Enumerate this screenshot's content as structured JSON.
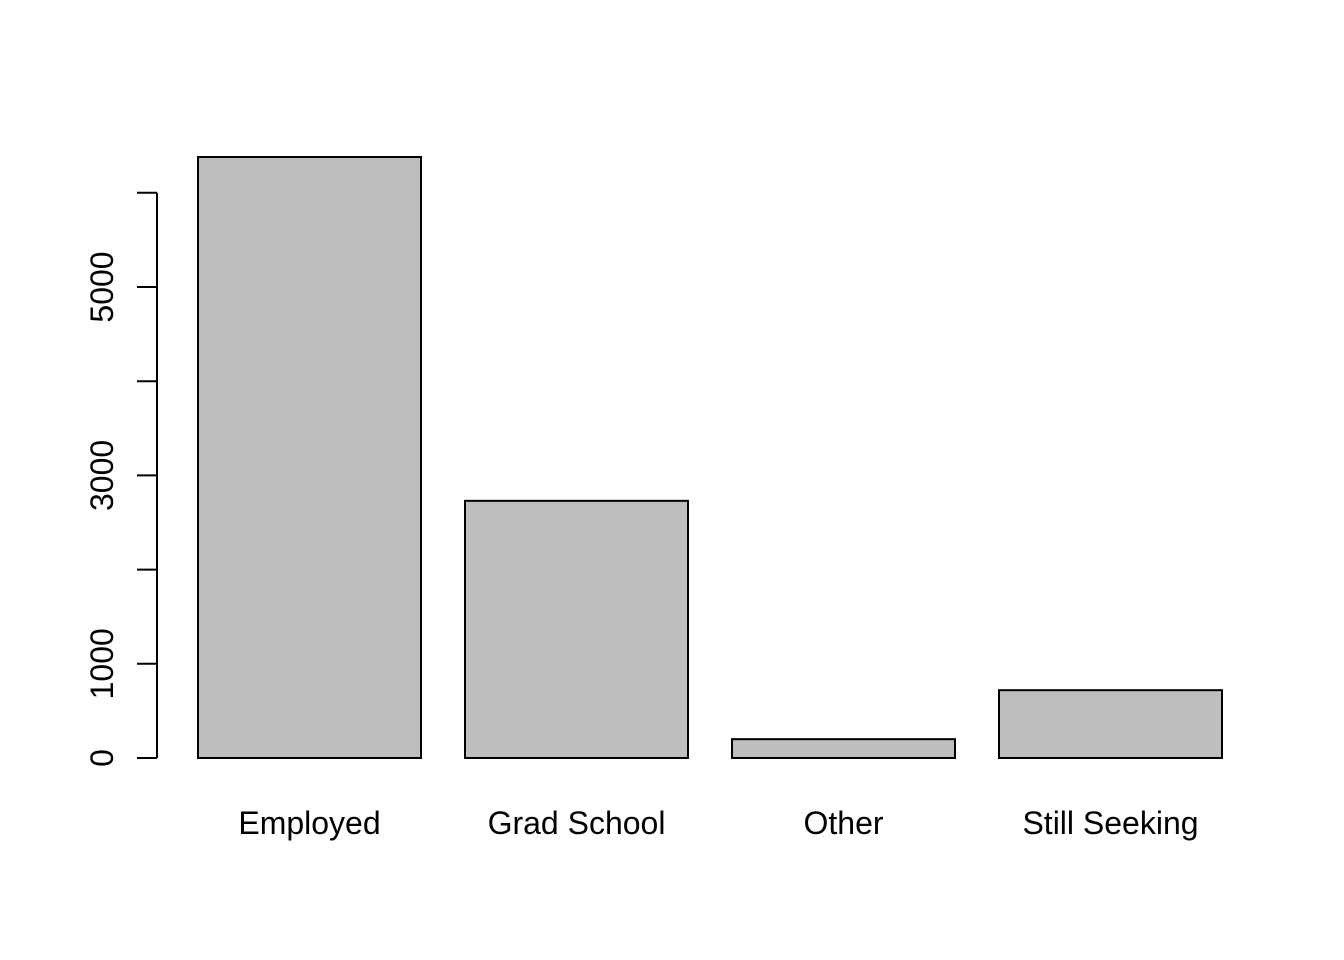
{
  "chart_data": {
    "type": "bar",
    "title": "",
    "xlabel": "",
    "ylabel": "",
    "categories": [
      "Employed",
      "Grad School",
      "Other",
      "Still Seeking"
    ],
    "values": [
      6380,
      2730,
      200,
      720
    ],
    "ylim": [
      0,
      6380
    ],
    "y_axis_max_tick": 6000,
    "y_ticks": [
      0,
      1000,
      2000,
      3000,
      4000,
      5000,
      6000
    ],
    "y_tick_labels": [
      "0",
      "1000",
      "",
      "3000",
      "",
      "5000",
      ""
    ],
    "grid": false,
    "legend": "none",
    "bar_fill": "#bebebe",
    "bar_stroke": "#000000"
  }
}
